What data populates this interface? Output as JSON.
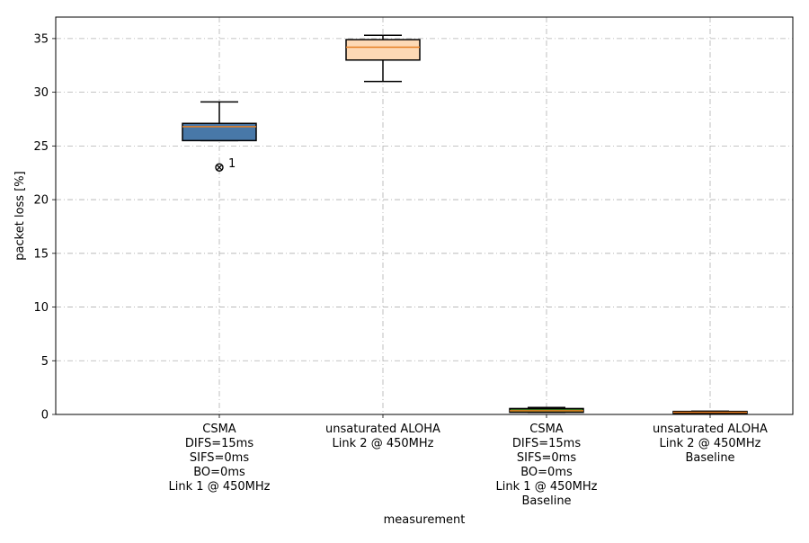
{
  "chart_data": {
    "type": "box",
    "title": "",
    "xlabel": "measurement",
    "ylabel": "packet loss [%]",
    "ylim": [
      0,
      37
    ],
    "yticks": [
      0,
      5,
      10,
      15,
      20,
      25,
      30,
      35
    ],
    "grid": true,
    "categories": [
      [
        "CSMA",
        "DIFS=15ms",
        "SIFS=0ms",
        "BO=0ms",
        "Link 1 @ 450MHz"
      ],
      [
        "unsaturated ALOHA",
        "Link 2 @ 450MHz"
      ],
      [
        "CSMA",
        "DIFS=15ms",
        "SIFS=0ms",
        "BO=0ms",
        "Link 1 @ 450MHz",
        "Baseline"
      ],
      [
        "unsaturated ALOHA",
        "Link 2 @ 450MHz",
        "Baseline"
      ]
    ],
    "boxes": [
      {
        "whisker_low": 25.5,
        "q1": 25.5,
        "median": 26.8,
        "q3": 27.1,
        "whisker_high": 29.1,
        "outliers": [
          23.0
        ],
        "outlier_labels": [
          "1"
        ],
        "color": "#4878a8"
      },
      {
        "whisker_low": 31.0,
        "q1": 33.0,
        "median": 34.2,
        "q3": 34.9,
        "whisker_high": 35.3,
        "outliers": [],
        "outlier_labels": [],
        "color": "#fdd9b5"
      },
      {
        "whisker_low": 0.2,
        "q1": 0.2,
        "median": 0.35,
        "q3": 0.55,
        "whisker_high": 0.65,
        "outliers": [],
        "outlier_labels": [],
        "color": "#3a7d1e"
      },
      {
        "whisker_low": 0.1,
        "q1": 0.1,
        "median": 0.2,
        "q3": 0.28,
        "whisker_high": 0.3,
        "outliers": [],
        "outlier_labels": [],
        "color": "#e8521e"
      }
    ],
    "median_color": "#e67e22"
  }
}
